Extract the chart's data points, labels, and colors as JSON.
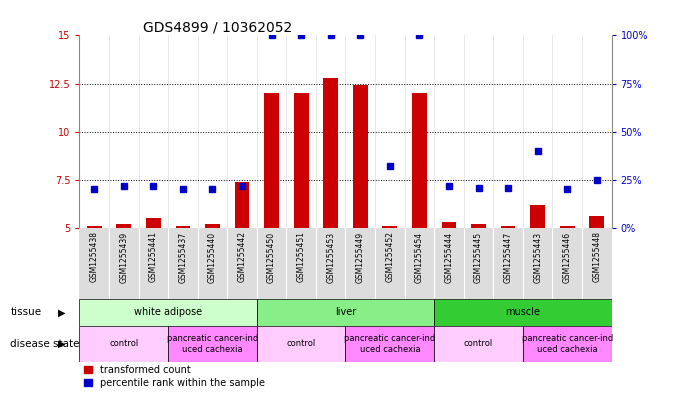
{
  "title": "GDS4899 / 10362052",
  "samples": [
    "GSM1255438",
    "GSM1255439",
    "GSM1255441",
    "GSM1255437",
    "GSM1255440",
    "GSM1255442",
    "GSM1255450",
    "GSM1255451",
    "GSM1255453",
    "GSM1255449",
    "GSM1255452",
    "GSM1255454",
    "GSM1255444",
    "GSM1255445",
    "GSM1255447",
    "GSM1255443",
    "GSM1255446",
    "GSM1255448"
  ],
  "transformed_count": [
    5.1,
    5.2,
    5.5,
    5.1,
    5.2,
    7.4,
    12.0,
    12.0,
    12.8,
    12.4,
    5.1,
    12.0,
    5.3,
    5.2,
    5.1,
    6.2,
    5.1,
    5.6
  ],
  "percentile_rank": [
    20,
    22,
    22,
    20,
    20,
    22,
    100,
    100,
    100,
    100,
    32,
    100,
    22,
    21,
    21,
    40,
    20,
    25
  ],
  "tissue_groups": [
    {
      "label": "white adipose",
      "start": 0,
      "end": 6,
      "color": "#ccffcc"
    },
    {
      "label": "liver",
      "start": 6,
      "end": 12,
      "color": "#88ee88"
    },
    {
      "label": "muscle",
      "start": 12,
      "end": 18,
      "color": "#33cc33"
    }
  ],
  "disease_groups": [
    {
      "label": "control",
      "start": 0,
      "end": 3,
      "color": "#ffccff"
    },
    {
      "label": "pancreatic cancer-ind\nuced cachexia",
      "start": 3,
      "end": 6,
      "color": "#ff88ff"
    },
    {
      "label": "control",
      "start": 6,
      "end": 9,
      "color": "#ffccff"
    },
    {
      "label": "pancreatic cancer-ind\nuced cachexia",
      "start": 9,
      "end": 12,
      "color": "#ff88ff"
    },
    {
      "label": "control",
      "start": 12,
      "end": 15,
      "color": "#ffccff"
    },
    {
      "label": "pancreatic cancer-ind\nuced cachexia",
      "start": 15,
      "end": 18,
      "color": "#ff88ff"
    }
  ],
  "ylim_left": [
    5,
    15
  ],
  "yticks_left": [
    5,
    7.5,
    10,
    12.5,
    15
  ],
  "ylim_right": [
    0,
    100
  ],
  "yticks_right": [
    0,
    25,
    50,
    75,
    100
  ],
  "bar_color": "#cc0000",
  "dot_color": "#0000cc",
  "bar_bottom": 5.0,
  "title_fontsize": 10,
  "tick_fontsize": 7,
  "label_fontsize": 7,
  "sample_bg_color": "#dddddd",
  "fig_bg_color": "#ffffff"
}
